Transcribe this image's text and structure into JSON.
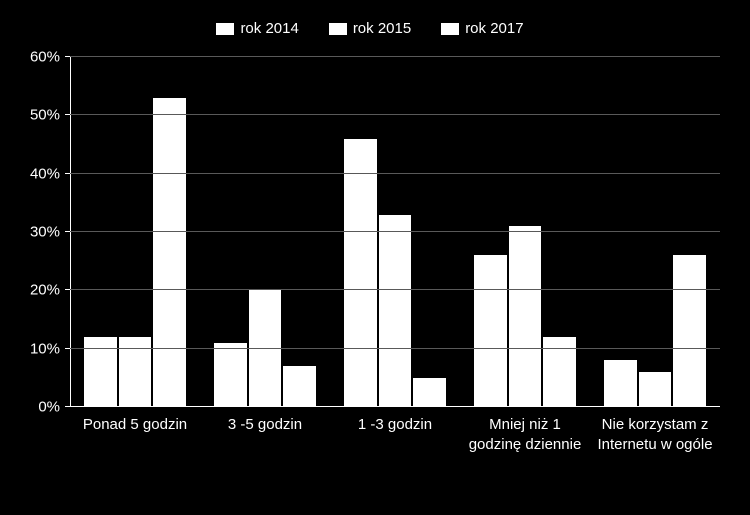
{
  "chart": {
    "type": "bar",
    "background_color": "#000000",
    "bar_color": "#ffffff",
    "grid_color": "#595959",
    "axis_color": "#ffffff",
    "text_color": "#ffffff",
    "label_fontsize": 15,
    "ylim": [
      0,
      60
    ],
    "ytick_step": 10,
    "y_suffix": "%",
    "series": [
      {
        "name": "rok 2014"
      },
      {
        "name": "rok 2015"
      },
      {
        "name": "rok 2017"
      }
    ],
    "categories": [
      {
        "label": "Ponad 5 godzin",
        "values": [
          12,
          12,
          53
        ]
      },
      {
        "label": "3 -5 godzin",
        "values": [
          11,
          20,
          7
        ]
      },
      {
        "label": "1 -3 godzin",
        "values": [
          46,
          33,
          5
        ]
      },
      {
        "label": "Mniej niż 1 godzinę dziennie",
        "values": [
          26,
          31,
          12
        ]
      },
      {
        "label": "Nie korzystam z Internetu w ogóle",
        "values": [
          8,
          6,
          26
        ]
      }
    ]
  }
}
